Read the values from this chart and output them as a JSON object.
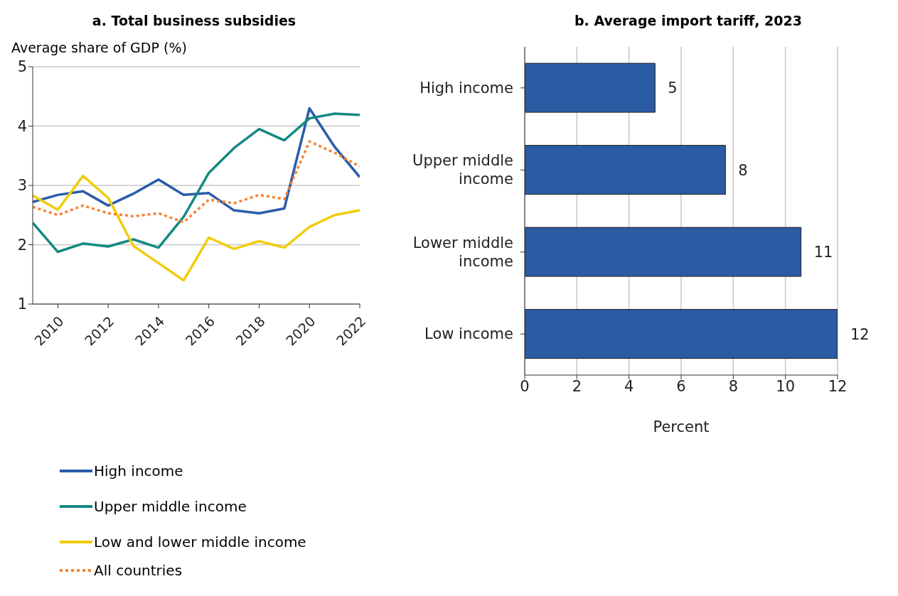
{
  "chart_data": [
    {
      "type": "line",
      "title": "a. Total business subsidies",
      "ylabel": "Average share of GDP (%)",
      "x": [
        2009,
        2010,
        2011,
        2012,
        2013,
        2014,
        2015,
        2016,
        2017,
        2018,
        2019,
        2020,
        2021,
        2022
      ],
      "xlim": [
        2009,
        2022
      ],
      "xticks": [
        2010,
        2012,
        2014,
        2016,
        2018,
        2020,
        2022
      ],
      "ylim": [
        1,
        5
      ],
      "yticks": [
        1,
        2,
        3,
        4,
        5
      ],
      "grid": "y",
      "legend": "bottom",
      "marker": "none",
      "series": [
        {
          "name": "High income",
          "color": "#2a5caa",
          "values": [
            2.72,
            2.84,
            2.9,
            2.66,
            2.86,
            3.1,
            2.84,
            2.87,
            2.58,
            2.53,
            2.61,
            4.3,
            3.65,
            3.14
          ]
        },
        {
          "name": "Upper middle income",
          "color": "#138a82",
          "values": [
            2.37,
            1.88,
            2.02,
            1.97,
            2.09,
            1.95,
            2.47,
            3.21,
            3.63,
            3.95,
            3.76,
            4.13,
            4.21,
            4.19
          ]
        },
        {
          "name": "Low and lower middle income",
          "color": "#f2cc0c",
          "values": [
            2.83,
            2.59,
            3.16,
            2.79,
            1.98,
            1.69,
            1.4,
            2.12,
            1.93,
            2.06,
            1.95,
            2.3,
            2.5,
            2.58
          ]
        },
        {
          "name": "All countries",
          "color": "#f58435",
          "line_style": "dotted",
          "values": [
            2.64,
            2.5,
            2.66,
            2.53,
            2.48,
            2.53,
            2.38,
            2.76,
            2.7,
            2.84,
            2.77,
            3.74,
            3.55,
            3.32
          ]
        }
      ]
    },
    {
      "type": "bar",
      "orientation": "horizontal",
      "title": "b. Average import tariff, 2023",
      "xlabel": "Percent",
      "categories": [
        "High income",
        "Upper middle income",
        "Lower middle income",
        "Low income"
      ],
      "values": [
        5,
        7.7,
        10.6,
        12
      ],
      "value_labels": [
        "5",
        "8",
        "11",
        "12"
      ],
      "color": "#2a5ba3",
      "xlim": [
        0,
        12
      ],
      "xticks": [
        0,
        2,
        4,
        6,
        8,
        10,
        12
      ],
      "grid": "x"
    }
  ]
}
